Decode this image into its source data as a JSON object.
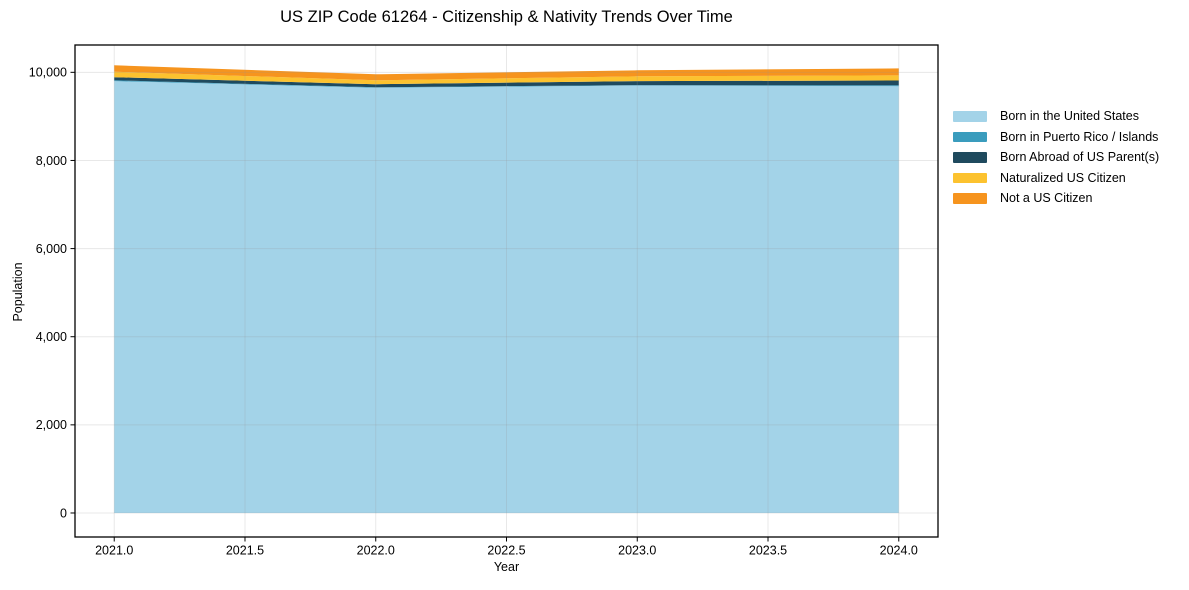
{
  "title": "US ZIP Code 61264 - Citizenship & Nativity Trends Over Time",
  "chart_data": {
    "type": "area",
    "stacked": true,
    "title": "US ZIP Code 61264 - Citizenship & Nativity Trends Over Time",
    "xlabel": "Year",
    "ylabel": "Population",
    "x": [
      2021,
      2022,
      2023,
      2024
    ],
    "series": [
      {
        "name": "Born in the United States",
        "color": "#a3d3e8",
        "values": [
          9800,
          9650,
          9700,
          9685
        ]
      },
      {
        "name": "Born in Puerto Rico / Islands",
        "color": "#3a9cbd",
        "values": [
          20,
          10,
          10,
          20
        ]
      },
      {
        "name": "Born Abroad of US Parent(s)",
        "color": "#1f4a5e",
        "values": [
          70,
          70,
          90,
          110
        ]
      },
      {
        "name": "Naturalized US Citizen",
        "color": "#fcc22f",
        "values": [
          125,
          90,
          110,
          115
        ]
      },
      {
        "name": "Not a US Citizen",
        "color": "#f6941e",
        "values": [
          145,
          135,
          135,
          160
        ]
      }
    ],
    "x_ticks": [
      2021.0,
      2021.5,
      2022.0,
      2022.5,
      2023.0,
      2023.5,
      2024.0
    ],
    "x_tick_labels": [
      "2021.0",
      "2021.5",
      "2022.0",
      "2022.5",
      "2023.0",
      "2023.5",
      "2024.0"
    ],
    "y_ticks": [
      0,
      2000,
      4000,
      6000,
      8000,
      10000
    ],
    "y_tick_labels": [
      "0",
      "2,000",
      "4,000",
      "6,000",
      "8,000",
      "10,000"
    ],
    "xlim": [
      2020.85,
      2024.15
    ],
    "ylim": [
      -545,
      10620
    ],
    "grid": true,
    "legend_position": "right-outside"
  },
  "colors": {
    "background": "#ffffff",
    "spine": "#000000",
    "gridline": "rgba(150,150,150,0.22)",
    "text": "#000000"
  }
}
